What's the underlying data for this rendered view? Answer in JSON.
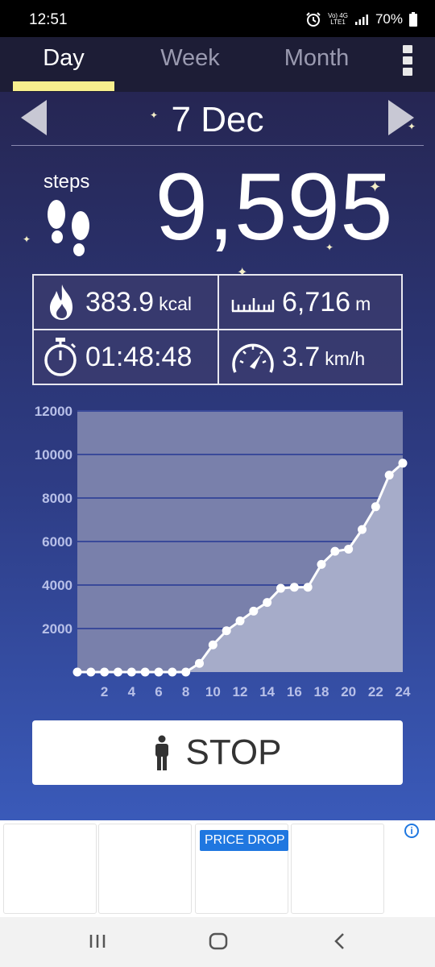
{
  "status": {
    "time": "12:51",
    "network_top": "Vo) 4G",
    "network_bottom": "LTE1",
    "battery": "70%"
  },
  "tabs": {
    "day": "Day",
    "week": "Week",
    "month": "Month",
    "active": "day"
  },
  "header": {
    "date": "7 Dec"
  },
  "summary": {
    "steps_label": "steps",
    "steps_value": "9,595",
    "calories_value": "383.9",
    "calories_unit": "kcal",
    "distance_value": "6,716",
    "distance_unit": "m",
    "duration_value": "01:48:48",
    "speed_value": "3.7",
    "speed_unit": "km/h"
  },
  "chart_data": {
    "type": "area",
    "title": "",
    "xlabel": "",
    "ylabel": "",
    "x": [
      0,
      1,
      2,
      3,
      4,
      5,
      6,
      7,
      8,
      9,
      10,
      11,
      12,
      13,
      14,
      15,
      16,
      17,
      18,
      19,
      20,
      21,
      22,
      23,
      24
    ],
    "y": [
      0,
      0,
      0,
      0,
      0,
      0,
      0,
      0,
      0,
      400,
      1250,
      1900,
      2350,
      2800,
      3200,
      3850,
      3900,
      3900,
      4950,
      5550,
      5650,
      6550,
      7600,
      9050,
      9600
    ],
    "x_ticks": [
      "2",
      "4",
      "6",
      "8",
      "10",
      "12",
      "14",
      "16",
      "18",
      "20",
      "22",
      "24"
    ],
    "y_ticks": [
      "2000",
      "4000",
      "6000",
      "8000",
      "10000",
      "12000"
    ],
    "xlim": [
      0,
      24
    ],
    "ylim": [
      0,
      12000
    ],
    "grid": true
  },
  "controls": {
    "stop_label": "STOP"
  },
  "ad": {
    "badge": "PRICE DROP",
    "info": "i"
  },
  "colors": {
    "accent": "#f7ef8e",
    "chart_bg": "#7980ab",
    "chart_fill": "#a6acc9",
    "grid": "#3a4a9a"
  }
}
